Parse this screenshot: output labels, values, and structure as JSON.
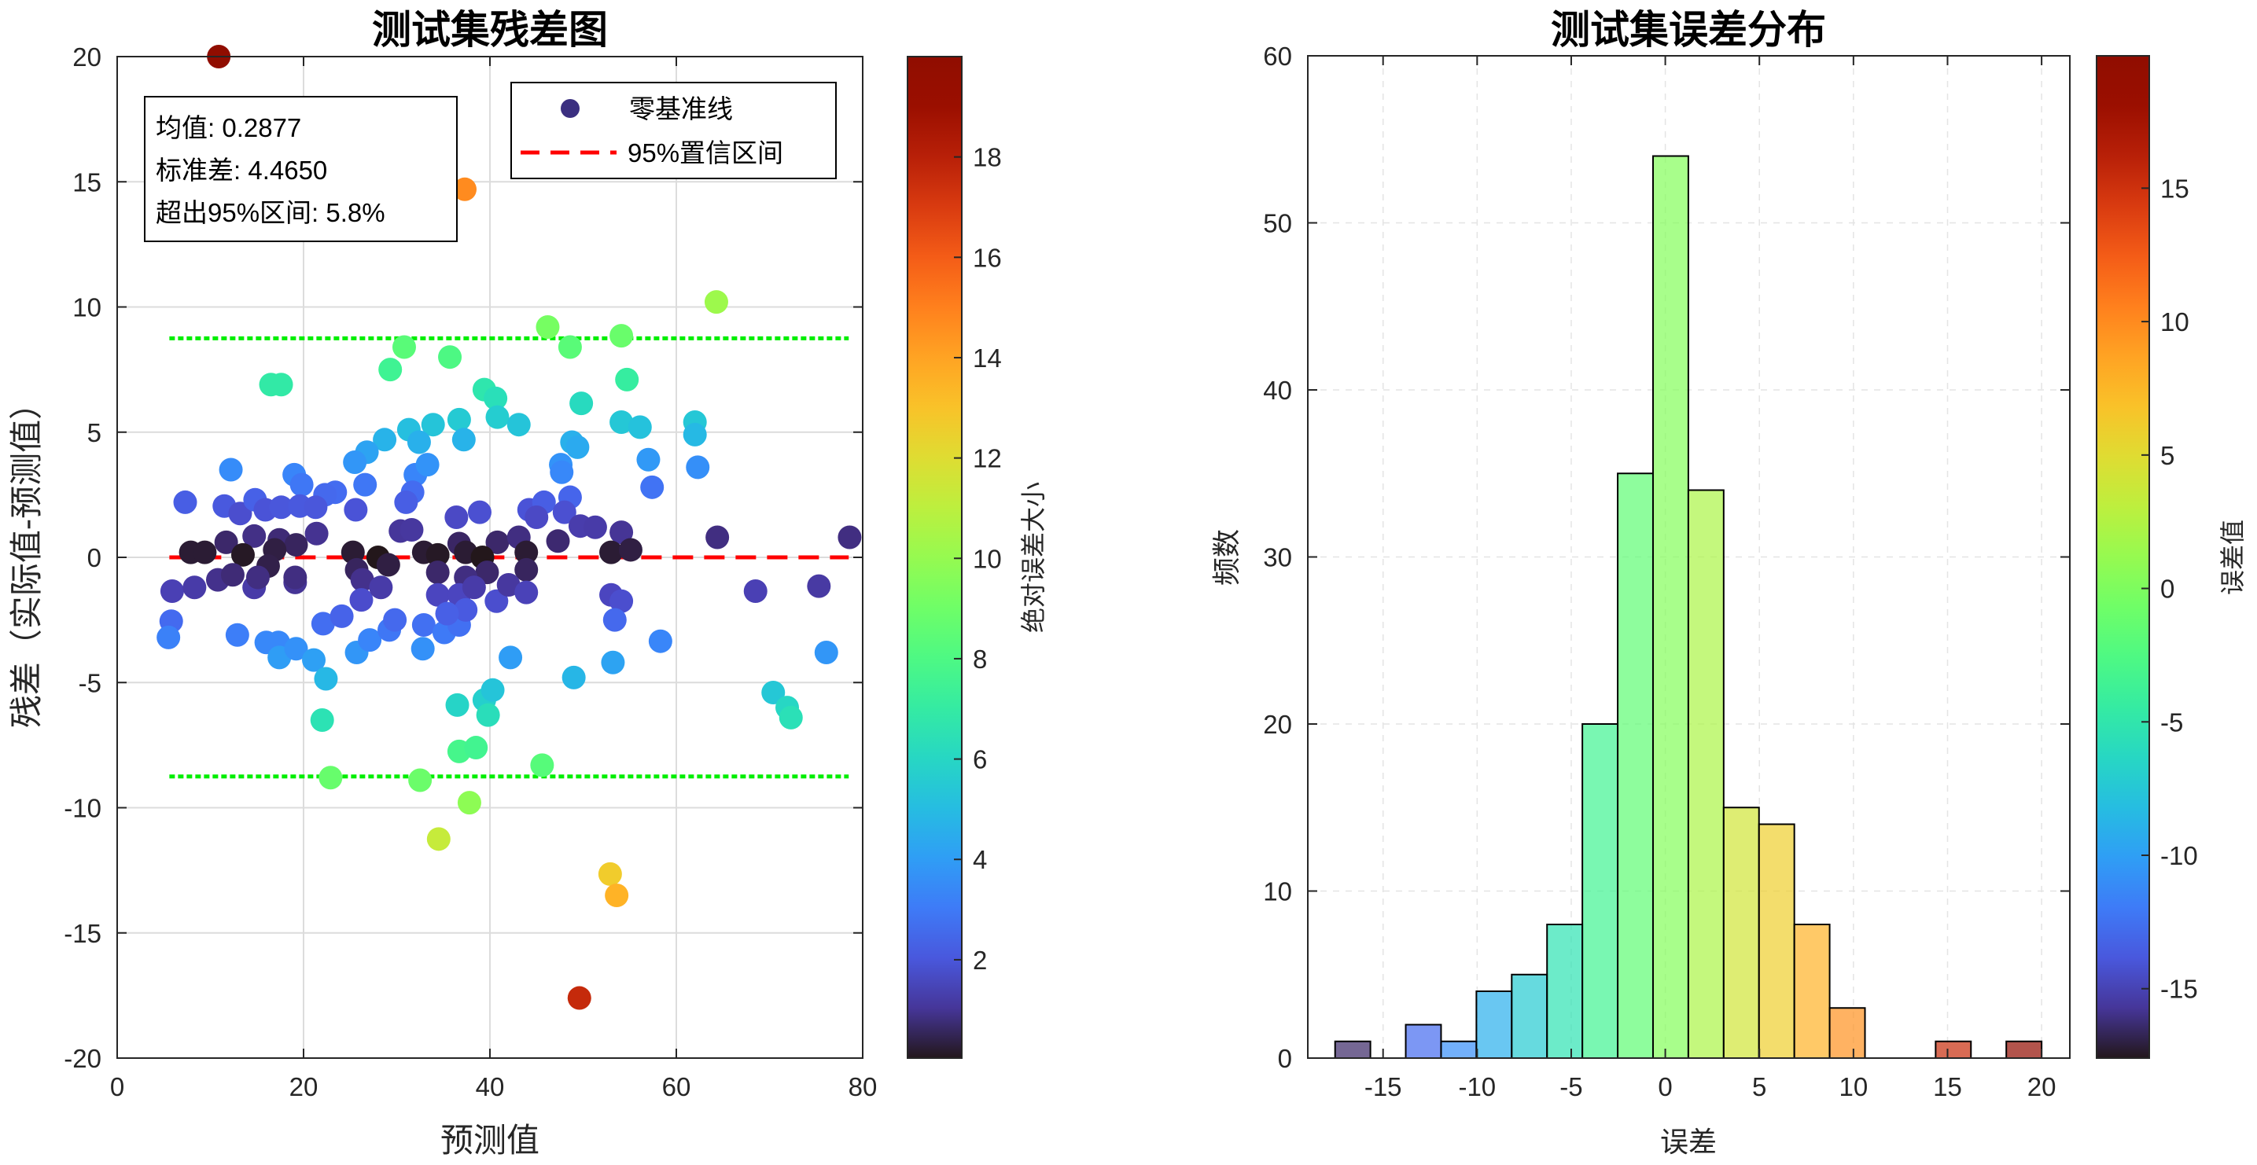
{
  "chart_data": [
    {
      "type": "scatter",
      "title": "测试集残差图",
      "xlabel": "预测值",
      "ylabel": "残差（实际值-预测值）",
      "xlim": [
        0,
        80
      ],
      "ylim": [
        -20,
        20
      ],
      "xticks": [
        "0",
        "20",
        "40",
        "60",
        "80"
      ],
      "yticks": [
        "-20",
        "-15",
        "-10",
        "-5",
        "0",
        "5",
        "10",
        "15",
        "20"
      ],
      "grid": true,
      "colorbar": {
        "label": "绝对误差大小",
        "range": [
          0.04,
          20.0
        ],
        "ticks": [
          "2",
          "4",
          "6",
          "8",
          "10",
          "12",
          "14",
          "16",
          "18"
        ],
        "colormap": "turbo"
      },
      "legend": {
        "position": "top-right",
        "entries": [
          "零基准线",
          "95%置信区间"
        ]
      },
      "stats": [
        "均值: 0.2877",
        "标准差: 4.4650",
        "超出95%区间: 5.8%"
      ],
      "zero_line": 0,
      "ci_bounds": [
        -8.75,
        8.75
      ],
      "line_x_range": [
        5.6,
        78.5
      ],
      "points": [
        [
          10.9,
          20.0
        ],
        [
          37.3,
          14.7
        ],
        [
          64.3,
          10.2
        ],
        [
          46.2,
          9.2
        ],
        [
          54.1,
          8.85
        ],
        [
          48.6,
          8.4
        ],
        [
          30.8,
          8.4
        ],
        [
          29.3,
          7.5
        ],
        [
          35.7,
          8.0
        ],
        [
          16.5,
          6.9
        ],
        [
          17.6,
          6.9
        ],
        [
          54.7,
          7.1
        ],
        [
          39.4,
          6.7
        ],
        [
          40.6,
          6.35
        ],
        [
          49.8,
          6.15
        ],
        [
          40.8,
          5.6
        ],
        [
          43.1,
          5.3
        ],
        [
          36.7,
          5.5
        ],
        [
          37.2,
          4.7
        ],
        [
          33.9,
          5.3
        ],
        [
          31.3,
          5.1
        ],
        [
          32.4,
          4.6
        ],
        [
          28.7,
          4.7
        ],
        [
          26.8,
          4.2
        ],
        [
          25.5,
          3.8
        ],
        [
          62.0,
          5.4
        ],
        [
          62.0,
          4.9
        ],
        [
          54.1,
          5.4
        ],
        [
          56.1,
          5.2
        ],
        [
          48.8,
          4.6
        ],
        [
          49.4,
          4.4
        ],
        [
          57.0,
          3.9
        ],
        [
          62.3,
          3.6
        ],
        [
          57.4,
          2.8
        ],
        [
          47.6,
          3.7
        ],
        [
          47.7,
          3.4
        ],
        [
          48.6,
          2.4
        ],
        [
          12.2,
          3.5
        ],
        [
          19.0,
          3.3
        ],
        [
          19.8,
          2.9
        ],
        [
          7.3,
          2.2
        ],
        [
          26.6,
          2.9
        ],
        [
          32.0,
          3.3
        ],
        [
          33.3,
          3.7
        ],
        [
          31.7,
          2.6
        ],
        [
          31.0,
          2.2
        ],
        [
          23.4,
          2.6
        ],
        [
          22.3,
          2.5
        ],
        [
          25.6,
          1.9
        ],
        [
          11.5,
          2.05
        ],
        [
          13.2,
          1.75
        ],
        [
          14.8,
          2.3
        ],
        [
          15.9,
          1.9
        ],
        [
          17.6,
          2.0
        ],
        [
          19.6,
          2.05
        ],
        [
          21.3,
          2.0
        ],
        [
          36.4,
          1.6
        ],
        [
          38.9,
          1.8
        ],
        [
          44.2,
          1.9
        ],
        [
          45.8,
          2.2
        ],
        [
          45.0,
          1.6
        ],
        [
          48.0,
          1.8
        ],
        [
          49.7,
          1.25
        ],
        [
          51.3,
          1.2
        ],
        [
          54.1,
          1.0
        ],
        [
          64.4,
          0.8
        ],
        [
          78.6,
          0.8
        ],
        [
          47.3,
          0.65
        ],
        [
          30.4,
          1.05
        ],
        [
          31.6,
          1.1
        ],
        [
          21.4,
          0.95
        ],
        [
          14.7,
          0.85
        ],
        [
          17.4,
          0.7
        ],
        [
          11.7,
          0.6
        ],
        [
          19.2,
          0.5
        ],
        [
          36.7,
          0.55
        ],
        [
          40.8,
          0.6
        ],
        [
          43.1,
          0.8
        ],
        [
          7.9,
          0.2
        ],
        [
          9.4,
          0.2
        ],
        [
          13.5,
          0.1
        ],
        [
          16.9,
          0.3
        ],
        [
          25.3,
          0.2
        ],
        [
          28.0,
          0.0
        ],
        [
          32.9,
          0.2
        ],
        [
          34.4,
          0.1
        ],
        [
          37.4,
          0.2
        ],
        [
          39.2,
          0.0
        ],
        [
          43.9,
          0.2
        ],
        [
          53.0,
          0.2
        ],
        [
          55.1,
          0.3
        ],
        [
          29.1,
          -0.3
        ],
        [
          25.7,
          -0.5
        ],
        [
          39.7,
          -0.6
        ],
        [
          43.9,
          -0.5
        ],
        [
          34.4,
          -0.6
        ],
        [
          16.2,
          -0.35
        ],
        [
          37.4,
          -0.8
        ],
        [
          5.9,
          -1.35
        ],
        [
          8.3,
          -1.2
        ],
        [
          10.8,
          -0.9
        ],
        [
          12.4,
          -0.7
        ],
        [
          14.7,
          -1.2
        ],
        [
          15.1,
          -0.8
        ],
        [
          19.1,
          -1.0
        ],
        [
          19.1,
          -0.8
        ],
        [
          26.3,
          -0.9
        ],
        [
          26.2,
          -1.7
        ],
        [
          28.3,
          -1.2
        ],
        [
          34.4,
          -1.5
        ],
        [
          36.7,
          -1.5
        ],
        [
          38.3,
          -1.2
        ],
        [
          40.7,
          -1.75
        ],
        [
          42.0,
          -1.1
        ],
        [
          43.9,
          -1.4
        ],
        [
          68.5,
          -1.35
        ],
        [
          75.3,
          -1.15
        ],
        [
          53.0,
          -1.5
        ],
        [
          54.1,
          -1.75
        ],
        [
          53.4,
          -2.5
        ],
        [
          5.8,
          -2.55
        ],
        [
          5.5,
          -3.2
        ],
        [
          12.9,
          -3.1
        ],
        [
          16.0,
          -3.4
        ],
        [
          17.3,
          -3.4
        ],
        [
          17.4,
          -4.0
        ],
        [
          19.2,
          -3.65
        ],
        [
          21.1,
          -4.1
        ],
        [
          22.4,
          -4.85
        ],
        [
          22.1,
          -2.65
        ],
        [
          24.1,
          -2.35
        ],
        [
          25.7,
          -3.8
        ],
        [
          27.1,
          -3.3
        ],
        [
          29.2,
          -2.9
        ],
        [
          29.8,
          -2.5
        ],
        [
          32.9,
          -2.7
        ],
        [
          32.8,
          -3.65
        ],
        [
          35.1,
          -3.0
        ],
        [
          36.7,
          -2.7
        ],
        [
          37.4,
          -2.1
        ],
        [
          35.4,
          -2.25
        ],
        [
          42.2,
          -4.0
        ],
        [
          49.0,
          -4.8
        ],
        [
          53.2,
          -4.2
        ],
        [
          58.3,
          -3.35
        ],
        [
          76.1,
          -3.8
        ],
        [
          36.5,
          -5.9
        ],
        [
          39.4,
          -5.7
        ],
        [
          40.3,
          -5.3
        ],
        [
          39.8,
          -6.3
        ],
        [
          22.0,
          -6.5
        ],
        [
          70.4,
          -5.4
        ],
        [
          71.9,
          -6.0
        ],
        [
          72.3,
          -6.4
        ],
        [
          36.7,
          -7.75
        ],
        [
          38.5,
          -7.6
        ],
        [
          45.6,
          -8.3
        ],
        [
          22.9,
          -8.8
        ],
        [
          32.5,
          -8.9
        ],
        [
          37.8,
          -9.8
        ],
        [
          34.5,
          -11.25
        ],
        [
          52.9,
          -12.65
        ],
        [
          53.6,
          -13.5
        ],
        [
          49.6,
          -17.6
        ]
      ]
    },
    {
      "type": "bar",
      "title": "测试集误差分布",
      "xlabel": "误差",
      "ylabel": "频数",
      "xlim": [
        -19,
        21.5
      ],
      "ylim": [
        0,
        60
      ],
      "xticks": [
        "-15",
        "-10",
        "-5",
        "0",
        "5",
        "10",
        "15",
        "20"
      ],
      "yticks": [
        "0",
        "10",
        "20",
        "30",
        "40",
        "50",
        "60"
      ],
      "grid": true,
      "bin_start": -17.55,
      "bin_width": 1.8775,
      "counts": [
        1,
        0,
        2,
        1,
        4,
        5,
        8,
        20,
        35,
        54,
        34,
        15,
        14,
        8,
        3,
        0,
        0,
        1,
        0,
        1
      ],
      "colorbar": {
        "label": "误差值",
        "range": [
          -17.6,
          19.96
        ],
        "ticks": [
          "-15",
          "-10",
          "-5",
          "0",
          "5",
          "10",
          "15"
        ],
        "colormap": "turbo"
      }
    }
  ],
  "colors": {
    "zero_line": "#ff0000",
    "ci_line": "#00ee00",
    "legend_marker": "#3b2f80",
    "axis": "#262626",
    "grid": "#dcdcdc"
  }
}
